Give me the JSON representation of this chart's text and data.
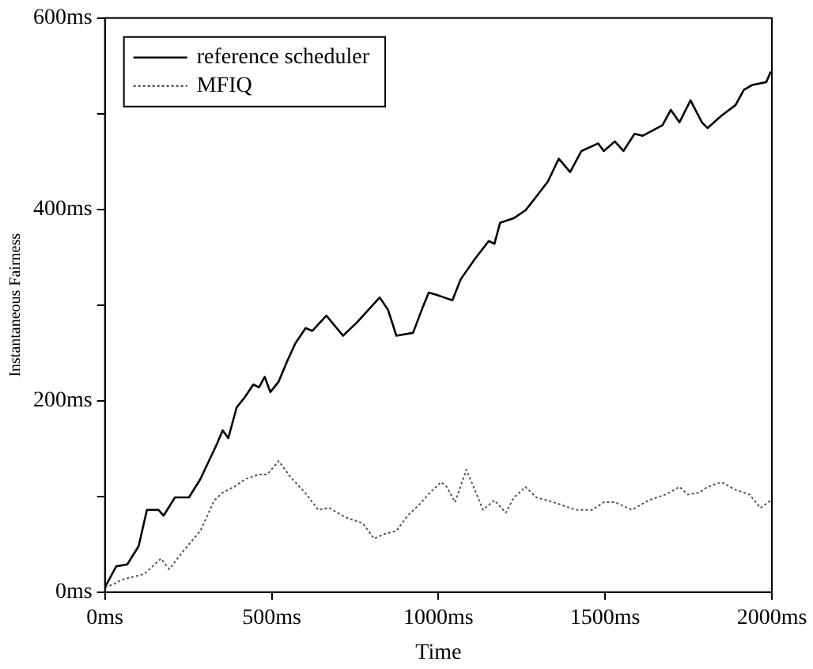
{
  "chart_data": {
    "type": "line",
    "xlabel": "Time",
    "ylabel": "Instantaneous Fairness",
    "xlim": [
      0,
      2000
    ],
    "ylim": [
      0,
      600
    ],
    "xticks": [
      {
        "value": 0,
        "label": "0ms"
      },
      {
        "value": 500,
        "label": "500ms"
      },
      {
        "value": 1000,
        "label": "1000ms"
      },
      {
        "value": 1500,
        "label": "1500ms"
      },
      {
        "value": 2000,
        "label": "2000ms"
      }
    ],
    "yticks": [
      {
        "value": 0,
        "label": "0ms"
      },
      {
        "value": 100,
        "label": null
      },
      {
        "value": 200,
        "label": "200ms"
      },
      {
        "value": 300,
        "label": null
      },
      {
        "value": 400,
        "label": "400ms"
      },
      {
        "value": 500,
        "label": null
      },
      {
        "value": 600,
        "label": "600ms"
      }
    ],
    "grid": false,
    "legend": "top left",
    "marker": "none",
    "series": [
      {
        "name": "reference scheduler",
        "color": "#000000",
        "line_style": "solid",
        "x": [
          0,
          34,
          67,
          101,
          126,
          160,
          176,
          210,
          252,
          286,
          336,
          353,
          370,
          395,
          420,
          445,
          462,
          479,
          496,
          521,
          546,
          571,
          602,
          622,
          664,
          714,
          756,
          790,
          824,
          849,
          874,
          924,
          950,
          971,
          992,
          1017,
          1042,
          1067,
          1109,
          1151,
          1168,
          1185,
          1227,
          1261,
          1286,
          1328,
          1361,
          1395,
          1429,
          1479,
          1496,
          1529,
          1555,
          1588,
          1613,
          1672,
          1697,
          1723,
          1756,
          1790,
          1807,
          1849,
          1891,
          1916,
          1941,
          1983,
          1997
        ],
        "values": [
          5,
          27,
          29,
          48,
          86,
          86,
          80,
          99,
          99,
          118,
          155,
          169,
          161,
          193,
          204,
          217,
          214,
          225,
          209,
          220,
          241,
          260,
          276,
          273,
          289,
          268,
          282,
          295,
          308,
          295,
          268,
          271,
          295,
          313,
          311,
          308,
          305,
          327,
          348,
          367,
          364,
          386,
          391,
          399,
          410,
          429,
          453,
          439,
          461,
          469,
          461,
          471,
          461,
          479,
          477,
          488,
          504,
          491,
          514,
          491,
          485,
          498,
          509,
          525,
          530,
          533,
          544
        ]
      },
      {
        "name": "MFIQ",
        "color": "#555555",
        "line_style": "dotted",
        "x": [
          0,
          25,
          50,
          118,
          168,
          193,
          235,
          286,
          328,
          353,
          387,
          420,
          462,
          487,
          521,
          555,
          605,
          639,
          672,
          723,
          773,
          807,
          840,
          874,
          908,
          941,
          975,
          1008,
          1025,
          1050,
          1084,
          1109,
          1134,
          1168,
          1202,
          1227,
          1261,
          1294,
          1345,
          1412,
          1462,
          1496,
          1529,
          1580,
          1630,
          1681,
          1723,
          1748,
          1782,
          1807,
          1849,
          1891,
          1933,
          1966,
          1997
        ],
        "values": [
          5,
          8,
          13,
          19,
          35,
          24,
          43,
          64,
          96,
          104,
          110,
          118,
          123,
          123,
          137,
          121,
          102,
          86,
          88,
          78,
          72,
          56,
          61,
          64,
          80,
          91,
          104,
          115,
          110,
          94,
          128,
          107,
          86,
          96,
          83,
          99,
          110,
          99,
          94,
          86,
          86,
          94,
          94,
          86,
          96,
          102,
          110,
          102,
          104,
          110,
          115,
          107,
          102,
          88,
          96
        ]
      }
    ]
  }
}
